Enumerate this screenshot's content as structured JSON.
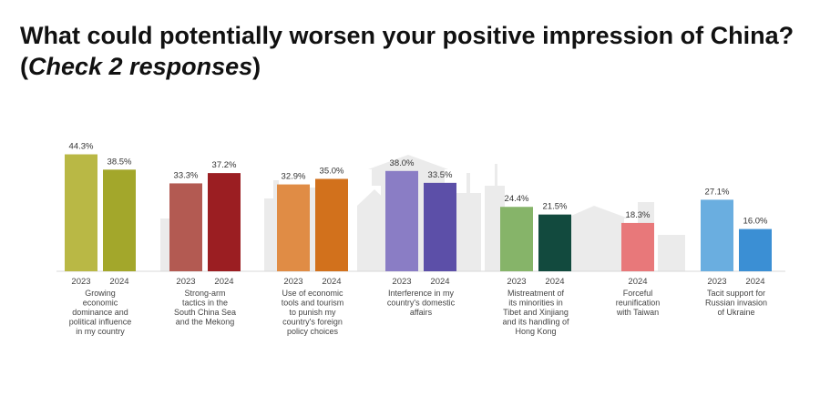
{
  "title": {
    "main": "What could potentially worsen your positive impression of China? (",
    "italic": "Check 2 responses",
    "close": ")"
  },
  "chart_data": {
    "type": "bar",
    "value_suffix": "%",
    "groups": [
      {
        "label_lines": [
          "Growing",
          "economic",
          "dominance and",
          "political influence",
          "in my country"
        ],
        "bars": [
          {
            "year": "2023",
            "value": 44.3,
            "label": "44.3%",
            "color": "#b9b845"
          },
          {
            "year": "2024",
            "value": 38.5,
            "label": "38.5%",
            "color": "#a3a72b"
          }
        ]
      },
      {
        "label_lines": [
          "Strong-arm",
          "tactics in the",
          "South China Sea",
          "and the Mekong"
        ],
        "bars": [
          {
            "year": "2023",
            "value": 33.3,
            "label": "33.3%",
            "color": "#b35a52"
          },
          {
            "year": "2024",
            "value": 37.2,
            "label": "37.2%",
            "color": "#9b1e22"
          }
        ]
      },
      {
        "label_lines": [
          "Use of economic",
          "tools and tourism",
          "to punish my",
          "country's foreign",
          "policy choices"
        ],
        "bars": [
          {
            "year": "2023",
            "value": 32.9,
            "label": "32.9%",
            "color": "#e08c45"
          },
          {
            "year": "2024",
            "value": 35.0,
            "label": "35.0%",
            "color": "#d2711c"
          }
        ]
      },
      {
        "label_lines": [
          "Interference in my",
          "country's domestic",
          "affairs"
        ],
        "bars": [
          {
            "year": "2023",
            "value": 38.0,
            "label": "38.0%",
            "color": "#8a7dc5"
          },
          {
            "year": "2024",
            "value": 33.5,
            "label": "33.5%",
            "color": "#5c4fa8"
          }
        ]
      },
      {
        "label_lines": [
          "Mistreatment of",
          "its minorities in",
          "Tibet and Xinjiang",
          "and its handling of",
          "Hong Kong"
        ],
        "bars": [
          {
            "year": "2023",
            "value": 24.4,
            "label": "24.4%",
            "color": "#86b469"
          },
          {
            "year": "2024",
            "value": 21.5,
            "label": "21.5%",
            "color": "#124a3e"
          }
        ]
      },
      {
        "label_lines": [
          "Forceful",
          "reunification",
          "with Taiwan"
        ],
        "bars": [
          {
            "year": "2024",
            "value": 18.3,
            "label": "18.3%",
            "color": "#e8787a"
          }
        ]
      },
      {
        "label_lines": [
          "Tacit support for",
          "Russian invasion",
          "of Ukraine"
        ],
        "bars": [
          {
            "year": "2023",
            "value": 27.1,
            "label": "27.1%",
            "color": "#6aaee0"
          },
          {
            "year": "2024",
            "value": 16.0,
            "label": "16.0%",
            "color": "#3b8fd4"
          }
        ]
      }
    ]
  }
}
